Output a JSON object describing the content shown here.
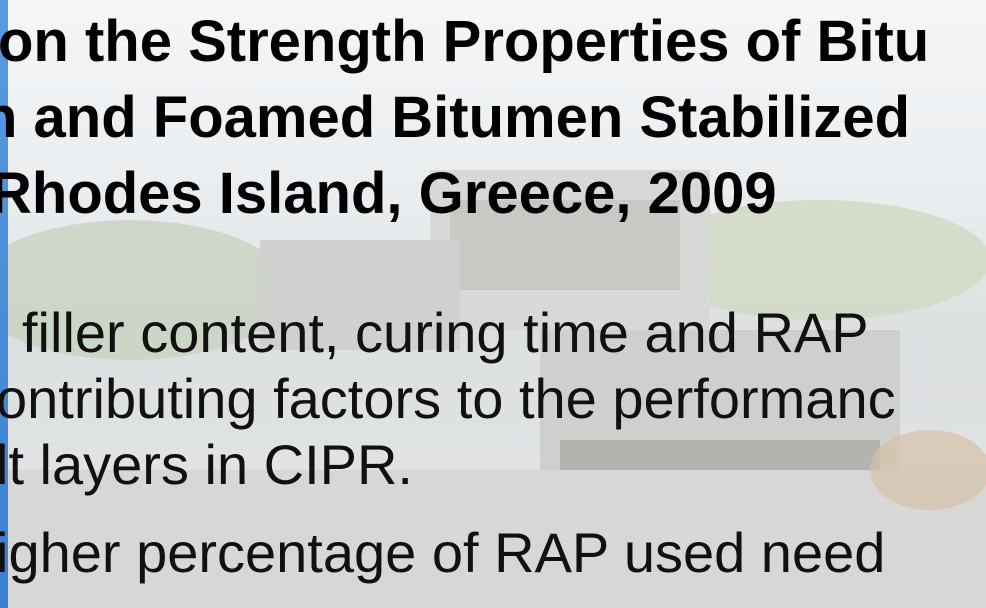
{
  "header": {
    "title_lines": [
      "on the Strength Properties of Bitu",
      "n and Foamed Bitumen Stabilized",
      "Rhodes Island, Greece, 2009"
    ]
  },
  "body": {
    "lines": [
      "filler content, curing time and RAP",
      "ontributing factors to the performanc",
      "lt layers in CIPR.",
      "igher percentage of RAP used need"
    ]
  }
}
